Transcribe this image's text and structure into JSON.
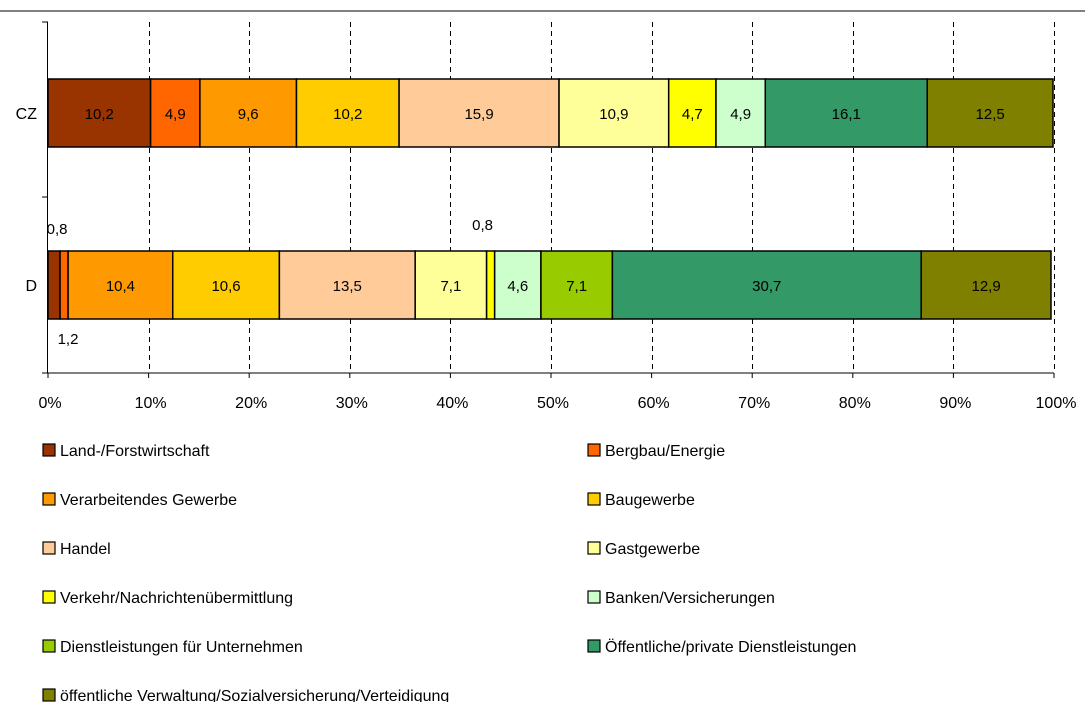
{
  "chart_data": {
    "type": "bar",
    "orientation": "horizontal",
    "stacked": "percent",
    "categories": [
      "CZ",
      "D"
    ],
    "xlim": [
      0,
      100
    ],
    "x_ticks": [
      "0%",
      "10%",
      "20%",
      "30%",
      "40%",
      "50%",
      "60%",
      "70%",
      "80%",
      "90%",
      "100%"
    ],
    "grid": "vertical dashed",
    "legend_position": "bottom",
    "series": [
      {
        "name": "Land-/Forstwirtschaft",
        "color": "#993300",
        "values": [
          10.2,
          1.2
        ],
        "labels": [
          "10,2",
          "1,2"
        ]
      },
      {
        "name": "Bergbau/Energie",
        "color": "#FF6600",
        "values": [
          4.9,
          0.8
        ],
        "labels": [
          "4,9",
          "0,8"
        ]
      },
      {
        "name": "Verarbeitendes Gewerbe",
        "color": "#FF9900",
        "values": [
          9.6,
          10.4
        ],
        "labels": [
          "9,6",
          "10,4"
        ]
      },
      {
        "name": "Baugewerbe",
        "color": "#FFCC00",
        "values": [
          10.2,
          10.6
        ],
        "labels": [
          "10,2",
          "10,6"
        ]
      },
      {
        "name": "Handel",
        "color": "#FFCC99",
        "values": [
          15.9,
          13.5
        ],
        "labels": [
          "15,9",
          "13,5"
        ]
      },
      {
        "name": "Gastgewerbe",
        "color": "#FFFF99",
        "values": [
          10.9,
          7.1
        ],
        "labels": [
          "10,9",
          "7,1"
        ]
      },
      {
        "name": "Verkehr/Nachrichtenübermittlung",
        "color": "#FFFF00",
        "values": [
          4.7,
          0.8
        ],
        "labels": [
          "4,7",
          "0,8"
        ]
      },
      {
        "name": "Banken/Versicherungen",
        "color": "#CCFFCC",
        "values": [
          4.9,
          4.6
        ],
        "labels": [
          "4,9",
          "4,6"
        ]
      },
      {
        "name": "Dienstleistungen für Unternehmen",
        "color": "#99CC00",
        "values": [
          0,
          7.1
        ],
        "labels": [
          "",
          "7,1"
        ]
      },
      {
        "name": "Öffentliche/private Dienstleistungen",
        "color": "#339966",
        "values": [
          16.1,
          30.7
        ],
        "labels": [
          "16,1",
          "30,7"
        ]
      },
      {
        "name": "öffentliche Verwaltung/Sozialversicherung/Verteidigung",
        "color": "#808000",
        "values": [
          12.5,
          12.9
        ],
        "labels": [
          "12,5",
          "12,9"
        ]
      }
    ]
  }
}
